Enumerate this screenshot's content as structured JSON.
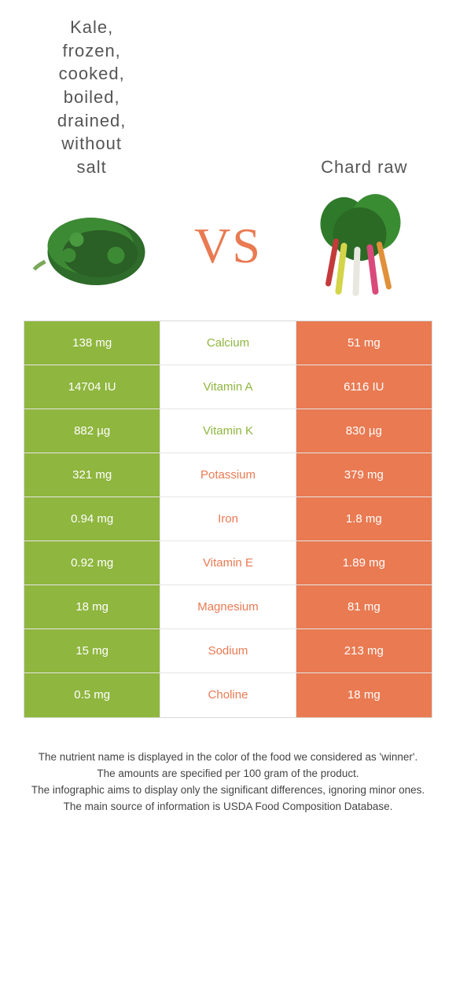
{
  "colors": {
    "kale": "#8fb63f",
    "chard": "#e97a52",
    "vs": "#e97a52"
  },
  "foods": {
    "left": {
      "title": "Kale,\nfrozen,\ncooked,\nboiled,\ndrained,\nwithout\nsalt"
    },
    "right": {
      "title": "Chard raw"
    }
  },
  "vs_label": "VS",
  "nutrients": [
    {
      "name": "Calcium",
      "left": "138 mg",
      "right": "51 mg",
      "winner": "left"
    },
    {
      "name": "Vitamin A",
      "left": "14704 IU",
      "right": "6116 IU",
      "winner": "left"
    },
    {
      "name": "Vitamin K",
      "left": "882 µg",
      "right": "830 µg",
      "winner": "left"
    },
    {
      "name": "Potassium",
      "left": "321 mg",
      "right": "379 mg",
      "winner": "right"
    },
    {
      "name": "Iron",
      "left": "0.94 mg",
      "right": "1.8 mg",
      "winner": "right"
    },
    {
      "name": "Vitamin E",
      "left": "0.92 mg",
      "right": "1.89 mg",
      "winner": "right"
    },
    {
      "name": "Magnesium",
      "left": "18 mg",
      "right": "81 mg",
      "winner": "right"
    },
    {
      "name": "Sodium",
      "left": "15 mg",
      "right": "213 mg",
      "winner": "right"
    },
    {
      "name": "Choline",
      "left": "0.5 mg",
      "right": "18 mg",
      "winner": "right"
    }
  ],
  "footer_lines": [
    "The nutrient name is displayed in the color of the food we considered as 'winner'.",
    "The amounts are specified per 100 gram of the product.",
    "The infographic aims to display only the significant differences, ignoring minor ones.",
    "The main source of information is USDA Food Composition Database."
  ]
}
